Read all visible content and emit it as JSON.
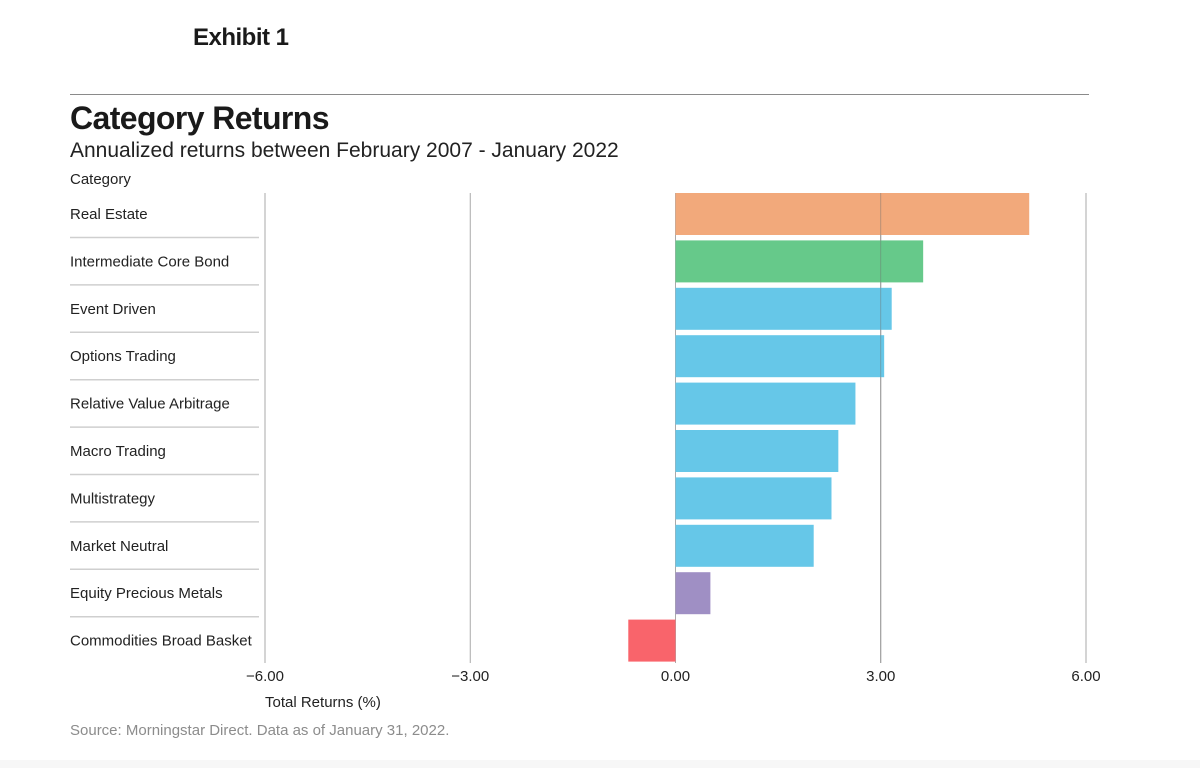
{
  "exhibit_label": "Exhibit 1",
  "chart_data": {
    "type": "bar",
    "orientation": "horizontal",
    "title": "Category Returns",
    "subtitle": "Annualized returns between February 2007 - January 2022",
    "category_axis_label": "Category",
    "xlabel": "Total Returns (%)",
    "xlim": [
      -6,
      6
    ],
    "xticks": [
      -6,
      -3,
      0,
      3,
      6
    ],
    "xtick_labels": [
      "−6.00",
      "−3.00",
      "0.00",
      "3.00",
      "6.00"
    ],
    "grid": true,
    "categories": [
      "Real Estate",
      "Intermediate Core Bond",
      "Event Driven",
      "Options Trading",
      "Relative Value Arbitrage",
      "Macro Trading",
      "Multistrategy",
      "Market Neutral",
      "Equity Precious Metals",
      "Commodities Broad Basket"
    ],
    "values": [
      5.17,
      3.62,
      3.16,
      3.05,
      2.63,
      2.38,
      2.28,
      2.02,
      0.51,
      -0.69
    ],
    "colors": [
      "#f2a97b",
      "#66c98a",
      "#66c7e8",
      "#66c7e8",
      "#66c7e8",
      "#66c7e8",
      "#66c7e8",
      "#66c7e8",
      "#9f8fc4",
      "#f9646b"
    ]
  },
  "source_text": "Source: Morningstar Direct. Data as of January 31, 2022."
}
